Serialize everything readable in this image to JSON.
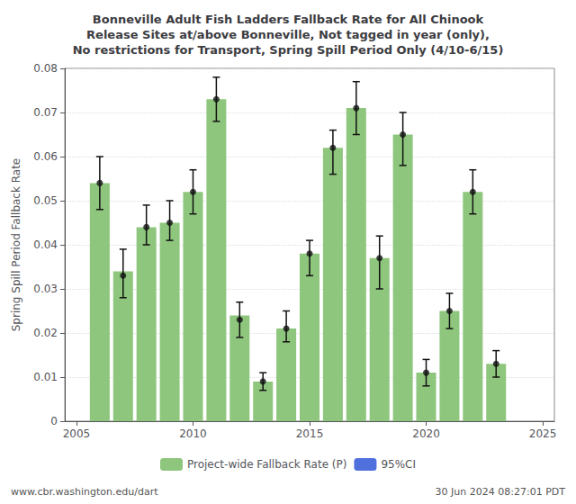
{
  "chart_data": {
    "type": "bar",
    "title": "Bonneville Adult Fish Ladders Fallback Rate for All Chinook\nRelease Sites at/above Bonneville, Not tagged in year (only),\nNo restrictions for Transport, Spring Spill Period Only (4/10-6/15)",
    "ylabel": "Spring Spill Period Fallback Rate",
    "x": [
      2006,
      2007,
      2008,
      2009,
      2010,
      2011,
      2012,
      2013,
      2014,
      2015,
      2016,
      2017,
      2018,
      2019,
      2020,
      2021,
      2022,
      2023
    ],
    "series": [
      {
        "name": "Project-wide Fallback Rate (P)",
        "type": "bar",
        "color": "#8ec67d",
        "values": [
          0.054,
          0.034,
          0.044,
          0.045,
          0.052,
          0.073,
          0.024,
          0.009,
          0.021,
          0.038,
          0.062,
          0.071,
          0.037,
          0.065,
          0.011,
          0.025,
          0.052,
          0.013
        ]
      },
      {
        "name": "95%CI",
        "type": "scatter",
        "color": "#111111",
        "marker": "circle",
        "values": [
          0.054,
          0.033,
          0.044,
          0.045,
          0.052,
          0.073,
          0.023,
          0.009,
          0.021,
          0.038,
          0.062,
          0.071,
          0.037,
          0.065,
          0.011,
          0.025,
          0.052,
          0.013
        ],
        "ci_lower": [
          0.048,
          0.028,
          0.04,
          0.041,
          0.047,
          0.068,
          0.019,
          0.007,
          0.018,
          0.033,
          0.056,
          0.065,
          0.03,
          0.058,
          0.008,
          0.021,
          0.047,
          0.01
        ],
        "ci_upper": [
          0.06,
          0.039,
          0.049,
          0.05,
          0.057,
          0.078,
          0.027,
          0.011,
          0.025,
          0.041,
          0.066,
          0.077,
          0.042,
          0.07,
          0.014,
          0.029,
          0.057,
          0.016
        ]
      }
    ],
    "xlim": [
      2004.5,
      2025.5
    ],
    "xticks": [
      2005,
      2010,
      2015,
      2020,
      2025
    ],
    "ylim": [
      0,
      0.08
    ],
    "yticks": [
      0,
      0.01,
      0.02,
      0.03,
      0.04,
      0.05,
      0.06,
      0.07,
      0.08
    ],
    "grid": true,
    "legend": "bottom",
    "annotations": [
      "www.cbr.washington.edu/dart",
      "30 Jun 2024 08:27:01 PDT"
    ]
  }
}
